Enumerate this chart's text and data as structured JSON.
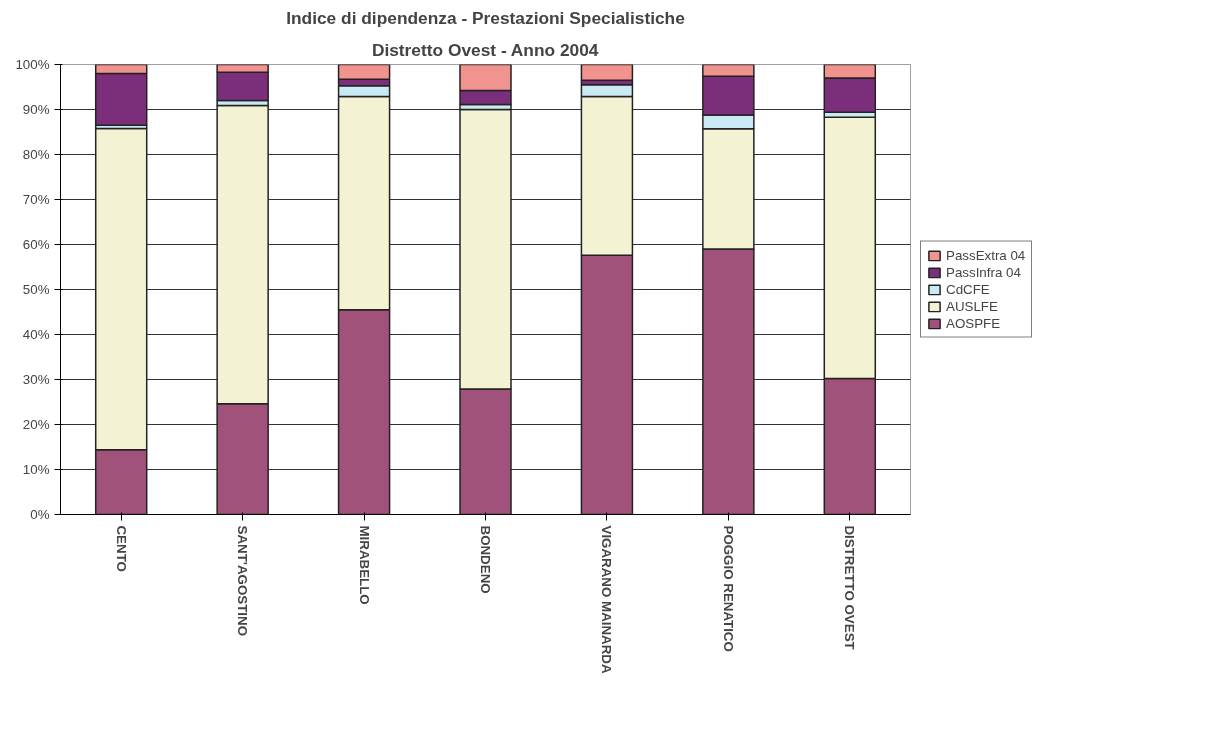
{
  "chart_data": {
    "type": "bar",
    "stacked": true,
    "title": "Indice di dipendenza - Prestazioni Specialistiche",
    "subtitle": "Distretto Ovest - Anno 2004",
    "categories": [
      "CENTO",
      "SANT'AGOSTINO",
      "MIRABELLO",
      "BONDENO",
      "VIGARANO MAINARDA",
      "POGGIO RENATICO",
      "DISTRETTO OVEST"
    ],
    "series": [
      {
        "name": "AOSPFE",
        "color": "#a0527a",
        "values": [
          14.4,
          24.6,
          45.5,
          27.9,
          57.6,
          59.0,
          30.2
        ]
      },
      {
        "name": "AUSLFE",
        "color": "#f3f2d3",
        "values": [
          71.4,
          66.3,
          47.4,
          62.1,
          35.3,
          26.7,
          58.1
        ]
      },
      {
        "name": "CdCFE",
        "color": "#c9eaf5",
        "values": [
          0.7,
          1.1,
          2.4,
          1.1,
          2.6,
          3.1,
          1.1
        ]
      },
      {
        "name": "PassInfra 04",
        "color": "#7b2f7b",
        "values": [
          11.5,
          6.3,
          1.4,
          3.1,
          1.0,
          8.6,
          7.6
        ]
      },
      {
        "name": "PassExtra 04",
        "color": "#f1948f",
        "values": [
          2.0,
          1.7,
          3.3,
          5.8,
          3.5,
          2.6,
          3.0
        ]
      }
    ],
    "ylim": [
      0,
      100
    ],
    "yticks": [
      {
        "value": 0,
        "label": "0%"
      },
      {
        "value": 10,
        "label": "10%"
      },
      {
        "value": 20,
        "label": "20%"
      },
      {
        "value": 30,
        "label": "30%"
      },
      {
        "value": 40,
        "label": "40%"
      },
      {
        "value": 50,
        "label": "50%"
      },
      {
        "value": 60,
        "label": "60%"
      },
      {
        "value": 70,
        "label": "70%"
      },
      {
        "value": 80,
        "label": "80%"
      },
      {
        "value": 90,
        "label": "90%"
      },
      {
        "value": 100,
        "label": "100%"
      }
    ],
    "grid": "y",
    "legend": "right"
  }
}
